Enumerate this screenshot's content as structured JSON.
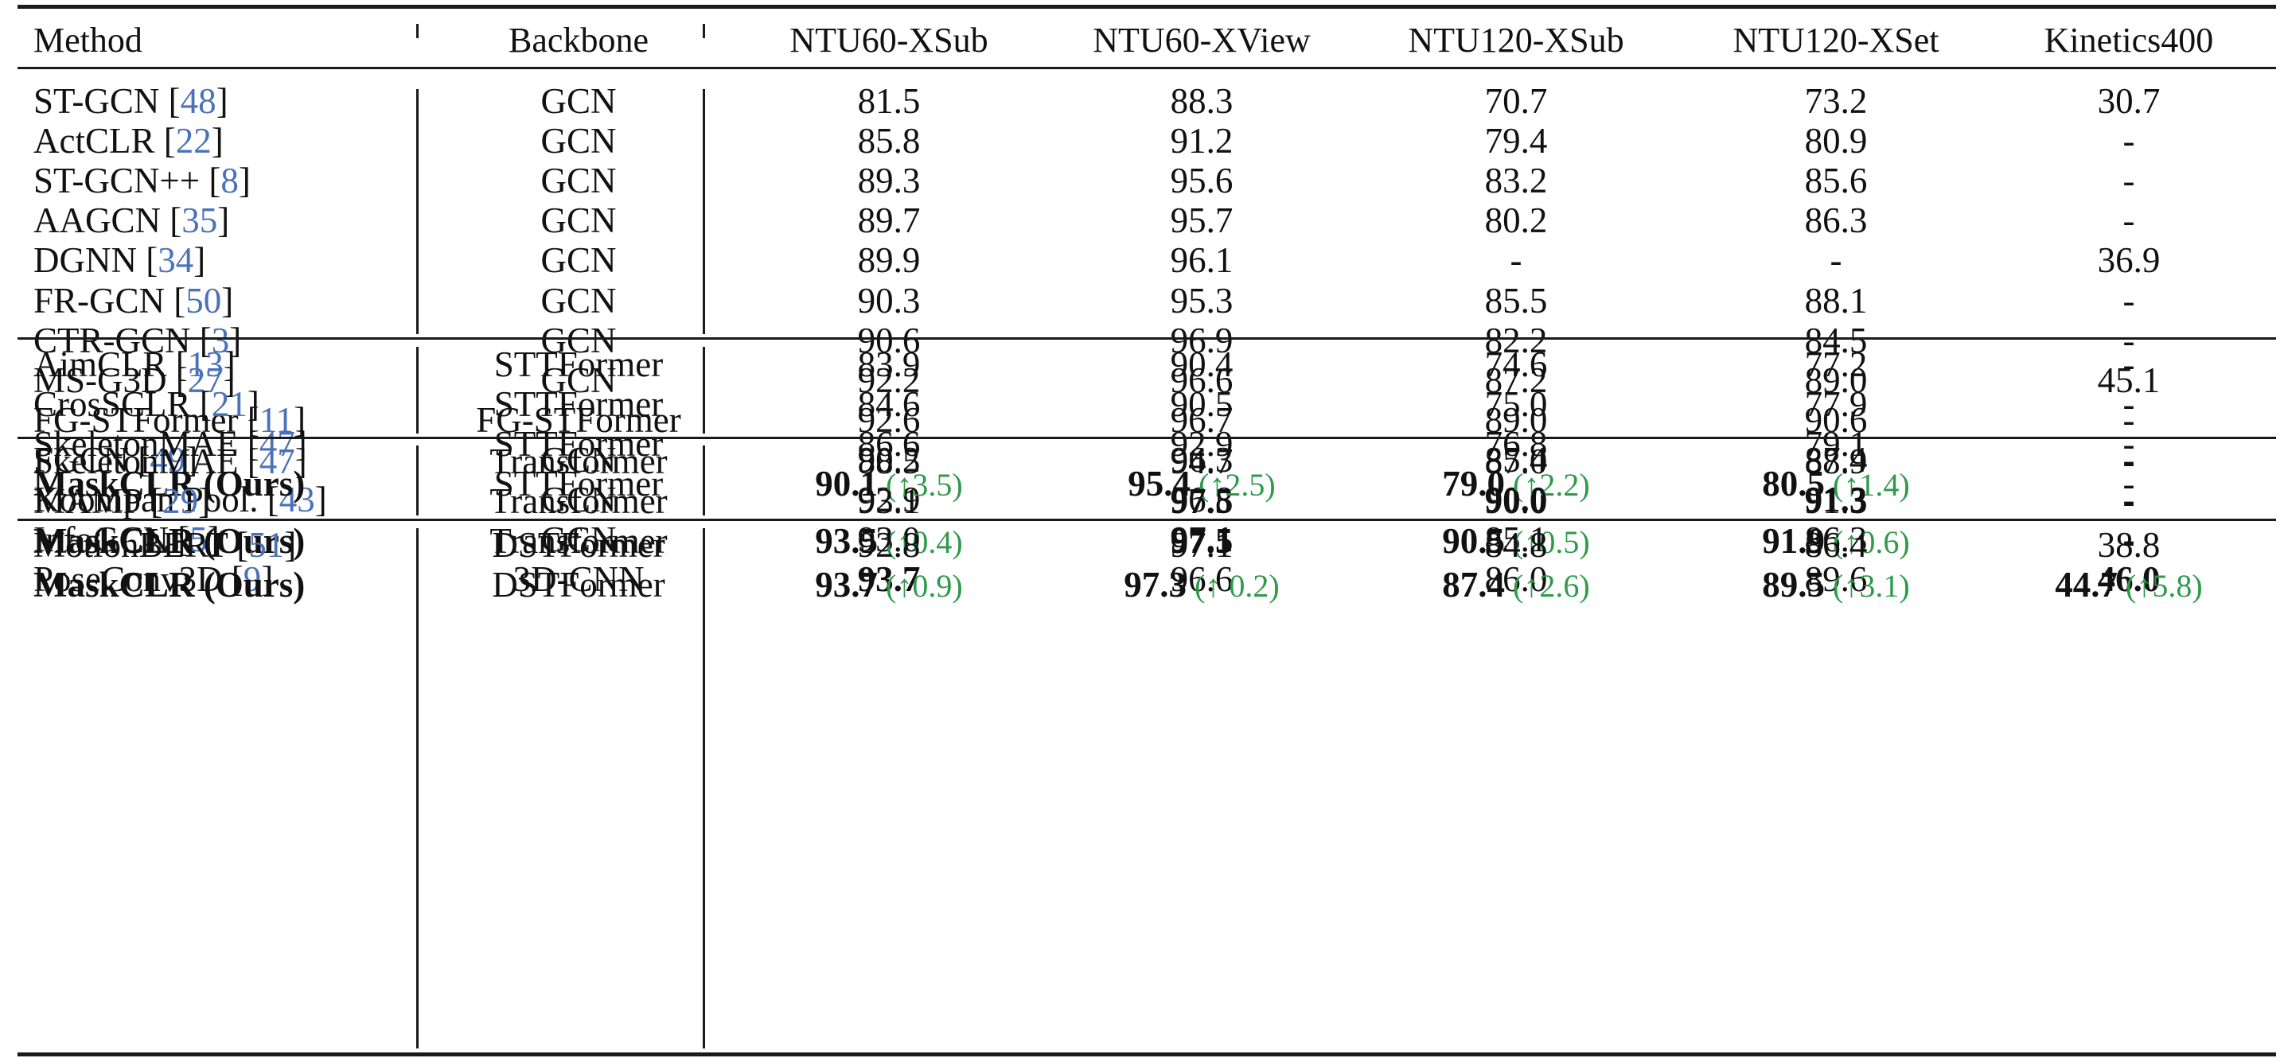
{
  "columns": [
    "Method",
    "Backbone",
    "NTU60-XSub",
    "NTU60-XView",
    "NTU120-XSub",
    "NTU120-XSet",
    "Kinetics400"
  ],
  "groups": [
    {
      "rows": [
        {
          "method": "ST-GCN",
          "ref": "48",
          "backbone": "GCN",
          "v": [
            "81.5",
            "88.3",
            "70.7",
            "73.2",
            "30.7"
          ]
        },
        {
          "method": "ActCLR",
          "ref": "22",
          "backbone": "GCN",
          "v": [
            "85.8",
            "91.2",
            "79.4",
            "80.9",
            "-"
          ]
        },
        {
          "method": "ST-GCN++",
          "ref": "8",
          "backbone": "GCN",
          "v": [
            "89.3",
            "95.6",
            "83.2",
            "85.6",
            "-"
          ]
        },
        {
          "method": "AAGCN",
          "ref": "35",
          "backbone": "GCN",
          "v": [
            "89.7",
            "95.7",
            "80.2",
            "86.3",
            "-"
          ]
        },
        {
          "method": "DGNN",
          "ref": "34",
          "backbone": "GCN",
          "v": [
            "89.9",
            "96.1",
            "-",
            "-",
            "36.9"
          ]
        },
        {
          "method": "FR-GCN",
          "ref": "50",
          "backbone": "GCN",
          "v": [
            "90.3",
            "95.3",
            "85.5",
            "88.1",
            "-"
          ]
        },
        {
          "method": "CTR-GCN",
          "ref": "3",
          "backbone": "GCN",
          "v": [
            "90.6",
            "96.9",
            "82.2",
            "84.5",
            "-"
          ]
        },
        {
          "method": "MS-G3D",
          "ref": "27",
          "backbone": "GCN",
          "v": [
            "92.2",
            "96.6",
            "87.2",
            "89.0",
            "45.1"
          ]
        },
        {
          "method": "FG-STFormer",
          "ref": "11",
          "backbone": "FG-STFormer",
          "v": [
            "92.6",
            "96.7",
            "89.0",
            "90.6",
            "-"
          ]
        },
        {
          "method": "FGCN",
          "ref": "49",
          "backbone": "GCN",
          "v": [
            "90.2",
            "96.3",
            "85.4",
            "87.4",
            "-"
          ]
        },
        {
          "method": "Koompan Pool.",
          "ref": "43",
          "backbone": "GCN",
          "v": [
            "92.9",
            "96.8",
            "90.0",
            "91.3",
            "-"
          ],
          "bold": [
            false,
            false,
            true,
            true,
            false
          ]
        },
        {
          "method": "InfoGCN",
          "ref": "5",
          "backbone": "GCN",
          "v": [
            "93.0",
            "97.1",
            "85.1",
            "86.3",
            "-"
          ],
          "bold": [
            false,
            true,
            false,
            false,
            false
          ]
        },
        {
          "method": "PoseConv3D",
          "ref": "9",
          "backbone": "3D-CNN",
          "v": [
            "93.7",
            "96.6",
            "86.0",
            "89.6",
            "46.0"
          ],
          "bold": [
            true,
            false,
            false,
            false,
            true
          ]
        }
      ]
    },
    {
      "rows": [
        {
          "method": "AimCLR",
          "ref": "13",
          "backbone": "STTFormer",
          "v": [
            "83.9",
            "90.4",
            "74.6",
            "77.2",
            "-"
          ]
        },
        {
          "method": "CrosSCLR",
          "ref": "21",
          "backbone": "STTFormer",
          "v": [
            "84.6",
            "90.5",
            "75.0",
            "77.9",
            "-"
          ]
        },
        {
          "method": "SkeletonMAE",
          "ref": "47",
          "backbone": "STTFormer",
          "v": [
            "86.6",
            "92.9",
            "76.8",
            "79.1",
            "-"
          ]
        },
        {
          "method": "MaskCLR (Ours)",
          "ref": "",
          "backbone": "STTFormer",
          "ours": true,
          "v": [
            "90.1",
            "95.4",
            "79.0",
            "80.5",
            "-"
          ],
          "bold": [
            true,
            true,
            true,
            true,
            false
          ],
          "gain": [
            "(↑3.5)",
            "(↑2.5)",
            "(↑2.2)",
            "(↑1.4)",
            ""
          ]
        }
      ]
    },
    {
      "rows": [
        {
          "method": "SkeletonMAE",
          "ref": "47",
          "backbone": "Transformer",
          "v": [
            "88.5",
            "94.7",
            "87.0",
            "88.9",
            "-"
          ]
        },
        {
          "method": "MAMP",
          "ref": "29",
          "backbone": "Transformer",
          "v": [
            "93.1",
            "97.5",
            "90.0",
            "91.3",
            "-"
          ],
          "bold": [
            false,
            true,
            false,
            false,
            false
          ]
        },
        {
          "method": "MaskCLR (Ours)",
          "ref": "",
          "backbone": "Transformer",
          "ours": true,
          "v": [
            "93.5",
            "97.5",
            "90.5",
            "91.9",
            "-"
          ],
          "bold": [
            true,
            true,
            true,
            true,
            false
          ],
          "gain": [
            "(↑0.4)",
            "",
            "(↑0.5)",
            "(↑0.6)",
            ""
          ]
        }
      ]
    },
    {
      "rows": [
        {
          "method": "MotionBERT",
          "ref": "51",
          "backbone": "DSTFormer",
          "v": [
            "92.8",
            "97.1",
            "84.8",
            "86.4",
            "38.8"
          ]
        },
        {
          "method": "MaskCLR (Ours)",
          "ref": "",
          "backbone": "DSTFormer",
          "ours": true,
          "v": [
            "93.7",
            "97.3",
            "87.4",
            "89.5",
            "44.7"
          ],
          "bold": [
            true,
            true,
            true,
            true,
            true
          ],
          "gain": [
            "(↑0.9)",
            "(↑ 0.2)",
            "(↑2.6)",
            "(↑3.1)",
            "(↑5.8)"
          ]
        }
      ]
    }
  ]
}
